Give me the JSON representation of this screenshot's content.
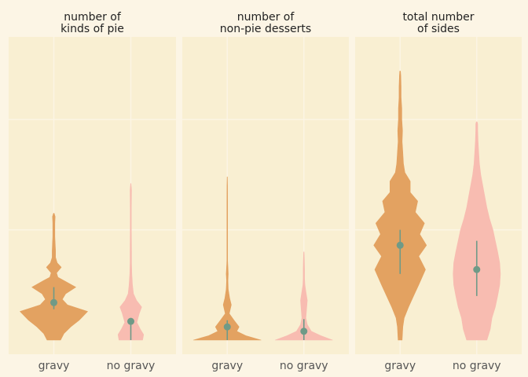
{
  "colors": {
    "background": "#fcf5e5",
    "panel": "#f9efd2",
    "grid": "#fcf5e5",
    "gravy": "#e3a261",
    "no_gravy": "#f8bcb1",
    "summary": "#6f9a87",
    "title_text": "#222222",
    "tick_text": "#555555"
  },
  "chart_data": [
    {
      "type": "violin",
      "title": [
        "number of",
        "kinds of pie"
      ],
      "categories": [
        "gravy",
        "no gravy"
      ],
      "ylim": [
        0,
        13
      ],
      "y_gridlines": [
        0,
        5,
        10
      ],
      "grid": true,
      "series": [
        {
          "category": "gravy",
          "median": 1.7,
          "interval": [
            1.4,
            2.4
          ],
          "density": [
            [
              0,
              0.2
            ],
            [
              0.3,
              0.3
            ],
            [
              0.6,
              0.5
            ],
            [
              0.9,
              0.75
            ],
            [
              1.3,
              1.0
            ],
            [
              1.6,
              0.4
            ],
            [
              1.85,
              0.25
            ],
            [
              2.1,
              0.35
            ],
            [
              2.4,
              0.65
            ],
            [
              2.7,
              0.3
            ],
            [
              2.85,
              0.12
            ],
            [
              3.05,
              0.08
            ],
            [
              3.3,
              0.22
            ],
            [
              3.5,
              0.1
            ],
            [
              3.75,
              0.05
            ],
            [
              4.05,
              0.05
            ],
            [
              4.4,
              0.04
            ],
            [
              4.7,
              0.03
            ],
            [
              5.0,
              0.03
            ],
            [
              5.3,
              0.03
            ],
            [
              5.6,
              0.04
            ],
            [
              5.75,
              0.01
            ]
          ]
        },
        {
          "category": "no gravy",
          "median": 0.85,
          "interval": [
            0,
            0.85
          ],
          "density": [
            [
              0,
              0.35
            ],
            [
              0.25,
              0.38
            ],
            [
              0.5,
              0.28
            ],
            [
              0.8,
              0.18
            ],
            [
              1.2,
              0.25
            ],
            [
              1.5,
              0.32
            ],
            [
              1.8,
              0.17
            ],
            [
              2.1,
              0.08
            ],
            [
              2.5,
              0.05
            ],
            [
              3.0,
              0.03
            ],
            [
              3.5,
              0.02
            ],
            [
              4.0,
              0.02
            ],
            [
              5.0,
              0.015
            ],
            [
              6.0,
              0.015
            ],
            [
              6.8,
              0.02
            ],
            [
              7.1,
              0.005
            ]
          ]
        }
      ]
    },
    {
      "type": "violin",
      "title": [
        "number of",
        "non-pie desserts"
      ],
      "categories": [
        "gravy",
        "no gravy"
      ],
      "ylim": [
        0,
        13
      ],
      "y_gridlines": [
        0,
        5,
        10
      ],
      "grid": true,
      "series": [
        {
          "category": "gravy",
          "median": 0.6,
          "interval": [
            0,
            0.9
          ],
          "density": [
            [
              0,
              1.0
            ],
            [
              0.2,
              0.55
            ],
            [
              0.4,
              0.28
            ],
            [
              0.6,
              0.35
            ],
            [
              0.9,
              0.2
            ],
            [
              1.2,
              0.06
            ],
            [
              1.6,
              0.12
            ],
            [
              1.9,
              0.07
            ],
            [
              2.3,
              0.03
            ],
            [
              2.7,
              0.02
            ],
            [
              3.0,
              0.03
            ],
            [
              3.3,
              0.02
            ],
            [
              3.6,
              0.01
            ],
            [
              4.1,
              0.01
            ],
            [
              4.6,
              0.01
            ],
            [
              5.2,
              0.01
            ],
            [
              5.7,
              0.01
            ],
            [
              6.2,
              0.01
            ],
            [
              7.0,
              0.008
            ],
            [
              7.4,
              0.004
            ]
          ]
        },
        {
          "category": "no gravy",
          "median": 0.4,
          "interval": [
            0,
            0.95
          ],
          "density": [
            [
              0,
              0.85
            ],
            [
              0.2,
              0.5
            ],
            [
              0.4,
              0.22
            ],
            [
              0.7,
              0.1
            ],
            [
              1.0,
              0.06
            ],
            [
              1.4,
              0.08
            ],
            [
              1.8,
              0.1
            ],
            [
              2.2,
              0.06
            ],
            [
              2.5,
              0.03
            ],
            [
              2.8,
              0.02
            ],
            [
              3.2,
              0.02
            ],
            [
              3.6,
              0.015
            ],
            [
              4.0,
              0.005
            ]
          ]
        }
      ]
    },
    {
      "type": "violin",
      "title": [
        "total number",
        "of sides"
      ],
      "categories": [
        "gravy",
        "no gravy"
      ],
      "ylim": [
        0,
        13
      ],
      "y_gridlines": [
        0,
        5,
        10
      ],
      "grid": true,
      "series": [
        {
          "category": "gravy",
          "median": 4.3,
          "interval": [
            3.0,
            5.0
          ],
          "density": [
            [
              0,
              0.06
            ],
            [
              0.6,
              0.08
            ],
            [
              1.0,
              0.12
            ],
            [
              1.5,
              0.25
            ],
            [
              2.0,
              0.4
            ],
            [
              2.5,
              0.55
            ],
            [
              3.2,
              0.75
            ],
            [
              3.8,
              0.55
            ],
            [
              4.3,
              0.78
            ],
            [
              4.8,
              0.58
            ],
            [
              5.3,
              0.72
            ],
            [
              5.8,
              0.45
            ],
            [
              6.3,
              0.52
            ],
            [
              6.7,
              0.3
            ],
            [
              7.2,
              0.3
            ],
            [
              7.6,
              0.14
            ],
            [
              8.0,
              0.1
            ],
            [
              8.5,
              0.08
            ],
            [
              9.0,
              0.06
            ],
            [
              9.5,
              0.07
            ],
            [
              10,
              0.05
            ],
            [
              10.5,
              0.05
            ],
            [
              11,
              0.03
            ],
            [
              11.5,
              0.03
            ],
            [
              12,
              0.02
            ],
            [
              12.2,
              0.01
            ]
          ]
        },
        {
          "category": "no gravy",
          "median": 3.2,
          "interval": [
            2.0,
            4.5
          ],
          "density": [
            [
              0,
              0.3
            ],
            [
              0.5,
              0.4
            ],
            [
              1.0,
              0.45
            ],
            [
              1.5,
              0.55
            ],
            [
              2.0,
              0.62
            ],
            [
              2.5,
              0.68
            ],
            [
              3.0,
              0.7
            ],
            [
              3.5,
              0.68
            ],
            [
              4.0,
              0.62
            ],
            [
              4.5,
              0.55
            ],
            [
              5.0,
              0.48
            ],
            [
              5.5,
              0.38
            ],
            [
              6.0,
              0.3
            ],
            [
              6.5,
              0.24
            ],
            [
              7.0,
              0.18
            ],
            [
              7.5,
              0.12
            ],
            [
              8.0,
              0.08
            ],
            [
              8.5,
              0.06
            ],
            [
              9.0,
              0.04
            ],
            [
              9.5,
              0.03
            ],
            [
              9.8,
              0.03
            ],
            [
              9.9,
              0.01
            ]
          ]
        }
      ]
    }
  ]
}
